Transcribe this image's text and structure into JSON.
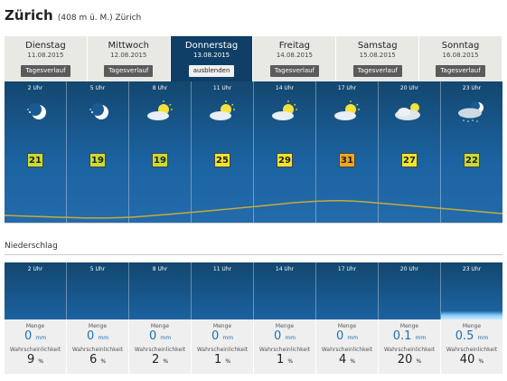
{
  "header": {
    "title": "Zürich",
    "subtitle": "(408 m ü. M.) Zürich"
  },
  "days": [
    {
      "day": "Dienstag",
      "date": "11.08.2015",
      "button": "Tagesverlauf",
      "active": false
    },
    {
      "day": "Mittwoch",
      "date": "12.08.2015",
      "button": "Tagesverlauf",
      "active": false
    },
    {
      "day": "Donnerstag",
      "date": "13.08.2015",
      "button": "ausblenden",
      "active": true
    },
    {
      "day": "Freitag",
      "date": "14.08.2015",
      "button": "Tagesverlauf",
      "active": false
    },
    {
      "day": "Samstag",
      "date": "15.08.2015",
      "button": "Tagesverlauf",
      "active": false
    },
    {
      "day": "Sonntag",
      "date": "16.08.2015",
      "button": "Tagesverlauf",
      "active": false
    }
  ],
  "hours": [
    {
      "time": "2 Uhr",
      "icon": "moon-partly-cloudy-icon",
      "temp": "21"
    },
    {
      "time": "5 Uhr",
      "icon": "moon-partly-cloudy-icon",
      "temp": "19"
    },
    {
      "time": "8 Uhr",
      "icon": "sun-cloud-icon",
      "temp": "19"
    },
    {
      "time": "11 Uhr",
      "icon": "sun-cloud-icon",
      "temp": "25"
    },
    {
      "time": "14 Uhr",
      "icon": "sun-cloud-icon",
      "temp": "29"
    },
    {
      "time": "17 Uhr",
      "icon": "sun-cloud-icon",
      "temp": "31"
    },
    {
      "time": "20 Uhr",
      "icon": "sun-cloudy-icon",
      "temp": "27"
    },
    {
      "time": "23 Uhr",
      "icon": "moon-cloud-rain-icon",
      "temp": "22"
    }
  ],
  "precip": {
    "section_title": "Niederschlag",
    "amount_label": "Menge",
    "prob_label": "Wahrscheinlichkeit",
    "amount_unit": "mm",
    "prob_unit": "%",
    "values": [
      {
        "amount": "0",
        "prob": "9"
      },
      {
        "amount": "0",
        "prob": "6"
      },
      {
        "amount": "0",
        "prob": "2"
      },
      {
        "amount": "0",
        "prob": "1"
      },
      {
        "amount": "0",
        "prob": "1"
      },
      {
        "amount": "0",
        "prob": "4"
      },
      {
        "amount": "0.1",
        "prob": "20"
      },
      {
        "amount": "0.5",
        "prob": "40"
      }
    ]
  },
  "colors": {
    "panel_dark": "#13476f",
    "panel_mid": "#1b62a0",
    "active_tab": "#0f3f66",
    "curve": "#c8a93a"
  }
}
